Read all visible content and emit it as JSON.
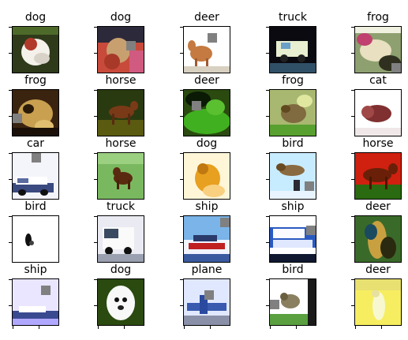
{
  "grid": {
    "rows": 5,
    "cols": 5,
    "images": [
      {
        "label": "dog",
        "occluder": {
          "present": false
        }
      },
      {
        "label": "dog",
        "occluder": {
          "present": true
        }
      },
      {
        "label": "deer",
        "occluder": {
          "present": true
        }
      },
      {
        "label": "truck",
        "occluder": {
          "present": false
        }
      },
      {
        "label": "frog",
        "occluder": {
          "present": true
        }
      },
      {
        "label": "frog",
        "occluder": {
          "present": true
        }
      },
      {
        "label": "horse",
        "occluder": {
          "present": false
        }
      },
      {
        "label": "deer",
        "occluder": {
          "present": true
        }
      },
      {
        "label": "frog",
        "occluder": {
          "present": false
        }
      },
      {
        "label": "cat",
        "occluder": {
          "present": false
        }
      },
      {
        "label": "car",
        "occluder": {
          "present": true
        }
      },
      {
        "label": "horse",
        "occluder": {
          "present": false
        }
      },
      {
        "label": "dog",
        "occluder": {
          "present": false
        }
      },
      {
        "label": "bird",
        "occluder": {
          "present": true
        }
      },
      {
        "label": "horse",
        "occluder": {
          "present": false
        }
      },
      {
        "label": "bird",
        "occluder": {
          "present": false
        }
      },
      {
        "label": "truck",
        "occluder": {
          "present": false
        }
      },
      {
        "label": "ship",
        "occluder": {
          "present": true
        }
      },
      {
        "label": "ship",
        "occluder": {
          "present": true
        }
      },
      {
        "label": "deer",
        "occluder": {
          "present": false
        }
      },
      {
        "label": "ship",
        "occluder": {
          "present": true
        }
      },
      {
        "label": "dog",
        "occluder": {
          "present": false
        }
      },
      {
        "label": "plane",
        "occluder": {
          "present": true
        }
      },
      {
        "label": "bird",
        "occluder": {
          "present": true
        }
      },
      {
        "label": "deer",
        "occluder": {
          "present": false
        }
      }
    ]
  },
  "colors": {
    "occluder": "#808080",
    "axis": "#000000",
    "title_text": "#000000"
  }
}
